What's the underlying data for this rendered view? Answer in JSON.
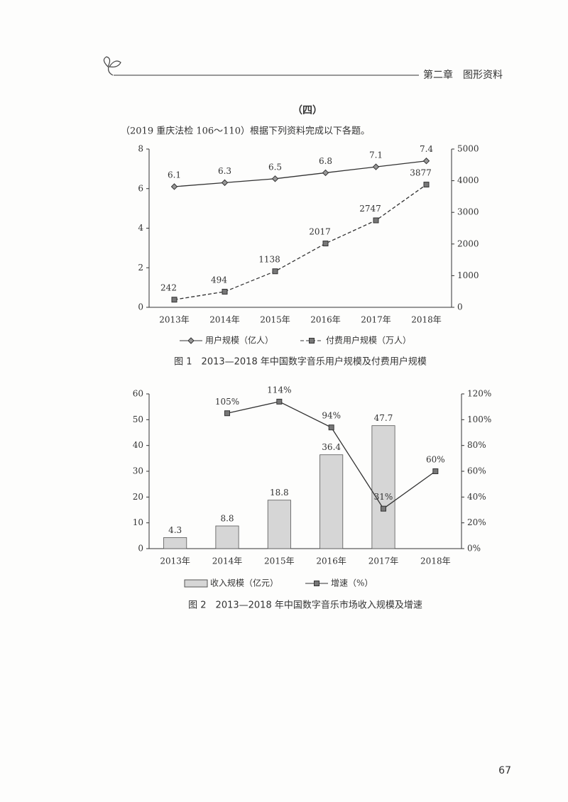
{
  "header": {
    "chapter": "第二章　图形资料"
  },
  "section": "（四）",
  "question": "（2019 重庆法检 106～110）根据下列资料完成以下各题。",
  "chart_data": [
    {
      "type": "line",
      "title": "图 1　2013—2018 年中国数字音乐用户规模及付费用户规模",
      "categories": [
        "2013年",
        "2014年",
        "2015年",
        "2016年",
        "2017年",
        "2018年"
      ],
      "series": [
        {
          "name": "用户规模（亿人）",
          "color": "#333333",
          "marker": "diamond",
          "linestyle": "solid",
          "values": [
            6.1,
            6.3,
            6.5,
            6.8,
            7.1,
            7.4
          ]
        },
        {
          "name": "付费用户规模（万人）",
          "color": "#333333",
          "marker": "square",
          "linestyle": "dashed",
          "axis": "y2",
          "values": [
            242,
            494,
            1138,
            2017,
            2747,
            3877
          ]
        }
      ],
      "ylim": [
        0,
        8
      ],
      "yticks": [
        0,
        2,
        4,
        6,
        8
      ],
      "y2lim": [
        0,
        5000
      ],
      "y2ticks": [
        0,
        1000,
        2000,
        3000,
        4000,
        5000
      ]
    },
    {
      "type": "bar-line",
      "title": "图 2　2013—2018 年中国数字音乐市场收入规模及增速",
      "categories": [
        "2013年",
        "2014年",
        "2015年",
        "2016年",
        "2017年",
        "2018年"
      ],
      "series": [
        {
          "name": "收入规模（亿元）",
          "type": "bar",
          "color": "#d6d6d6",
          "values": [
            4.3,
            8.8,
            18.8,
            36.4,
            47.7,
            null
          ]
        },
        {
          "name": "增速（%）",
          "type": "line",
          "color": "#333333",
          "marker": "square",
          "linestyle": "solid",
          "axis": "y2",
          "values": [
            null,
            105,
            114,
            94,
            31,
            60
          ],
          "value_labels": [
            null,
            "105%",
            "114%",
            "94%",
            "31%",
            "60%"
          ]
        }
      ],
      "ylim": [
        0,
        60
      ],
      "yticks": [
        0,
        10,
        20,
        30,
        40,
        50,
        60
      ],
      "y2lim": [
        0,
        120
      ],
      "y2ticks": [
        {
          "value": 0,
          "label": "0%"
        },
        {
          "value": 20,
          "label": "20%"
        },
        {
          "value": 40,
          "label": "40%"
        },
        {
          "value": 60,
          "label": "60%"
        },
        {
          "value": 80,
          "label": "80%"
        },
        {
          "value": 100,
          "label": "100%"
        },
        {
          "value": 120,
          "label": "120%"
        }
      ]
    }
  ],
  "page_number": "67"
}
